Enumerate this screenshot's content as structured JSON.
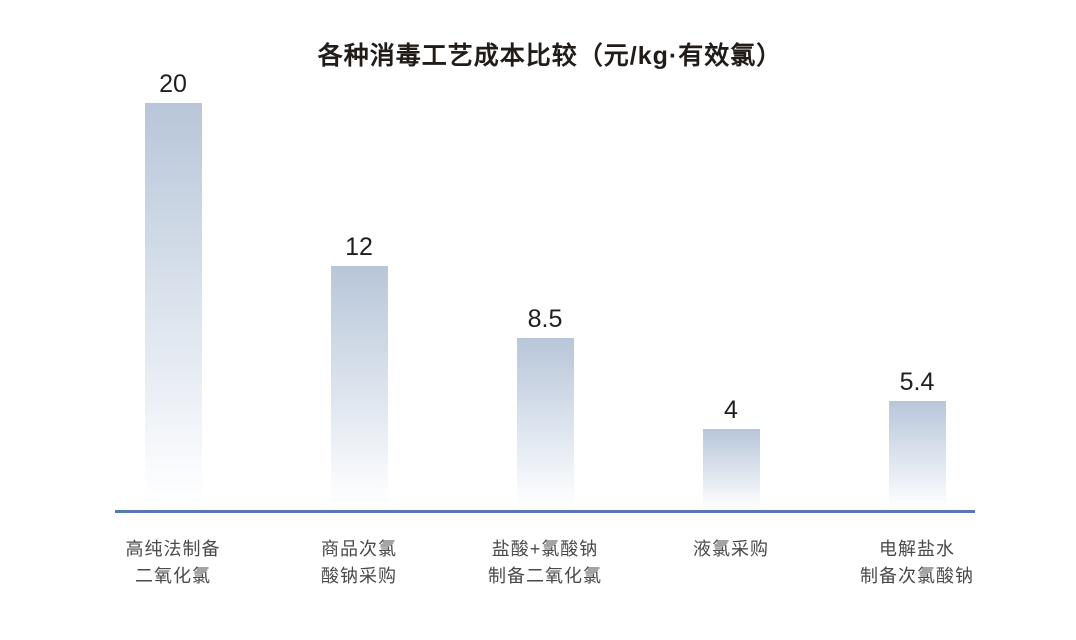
{
  "chart_data": {
    "type": "bar",
    "title": "各种消毒工艺成本比较（元/kg·有效氯）",
    "categories": [
      [
        "高纯法制备",
        "二氧化氯"
      ],
      [
        "商品次氯",
        "酸钠采购"
      ],
      [
        "盐酸+氯酸钠",
        "制备二氧化氯"
      ],
      [
        "液氯采购"
      ],
      [
        "电解盐水",
        "制备次氯酸钠"
      ]
    ],
    "values": [
      20,
      12,
      8.5,
      4,
      5.4
    ],
    "value_labels": [
      "20",
      "12",
      "8.5",
      "4",
      "5.4"
    ],
    "xlabel": "",
    "ylabel": "",
    "ylim": [
      0,
      20
    ],
    "grid": false,
    "legend": false,
    "background": "#ffffff",
    "bar_color_top": "#b8c6d9",
    "bar_color_bottom": "#ffffff",
    "axis_line_color": "#567ab0",
    "title_color": "#221c18",
    "value_label_color": "#1e1e1e",
    "category_label_color": "#4a4a4a"
  }
}
